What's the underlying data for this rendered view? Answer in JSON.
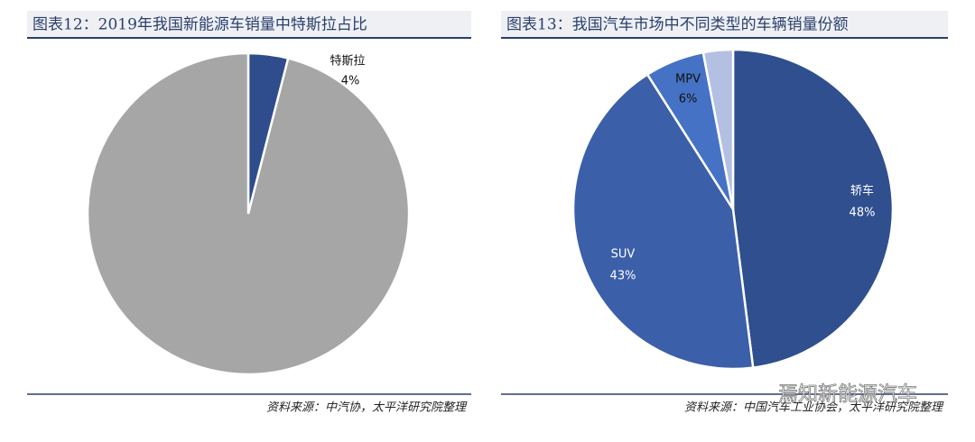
{
  "chart_data": [
    {
      "type": "pie",
      "title": "图表12：2019年我国新能源车销量中特斯拉占比",
      "categories": [
        "特斯拉",
        null
      ],
      "values": [
        4,
        96
      ],
      "value_labels": [
        "4%",
        null
      ],
      "colors": [
        "#2f4d8c",
        "#a6a6a6"
      ],
      "source": "资料来源：中汽协，太平洋研究院整理"
    },
    {
      "type": "pie",
      "title": "图表13：我国汽车市场中不同类型的车辆销量份额",
      "categories": [
        "轿车",
        "SUV",
        "MPV",
        null
      ],
      "values": [
        48,
        43,
        6,
        3
      ],
      "value_labels": [
        "48%",
        "43%",
        "6%",
        null
      ],
      "colors": [
        "#2f4f8f",
        "#3b5fa9",
        "#4572c4",
        "#b4c0e2"
      ],
      "source": "资料来源：中国汽车工业协会，太平洋研究院整理"
    }
  ],
  "watermark": "焉知新能源汽车"
}
